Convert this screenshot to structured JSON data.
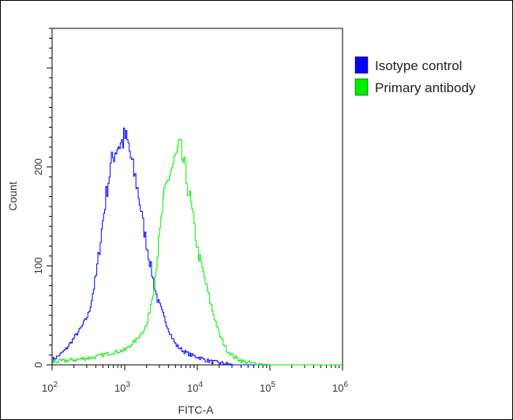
{
  "chart_data": {
    "type": "line",
    "xlabel": "FITC-A",
    "ylabel": "Count",
    "x_scale": "log",
    "xlim": [
      100,
      1000000
    ],
    "ylim": [
      0,
      340
    ],
    "x_ticks": [
      {
        "value": 100,
        "base": "10",
        "exp": "2"
      },
      {
        "value": 1000,
        "base": "10",
        "exp": "3"
      },
      {
        "value": 10000,
        "base": "10",
        "exp": "4"
      },
      {
        "value": 100000,
        "base": "10",
        "exp": "5"
      },
      {
        "value": 1000000,
        "base": "10",
        "exp": "6"
      }
    ],
    "y_ticks": [
      {
        "value": 0,
        "label": "0"
      },
      {
        "value": 100,
        "label": "100"
      },
      {
        "value": 200,
        "label": "200"
      }
    ],
    "legend_position": "top-right",
    "grid": false,
    "series": [
      {
        "name": "Isotype control",
        "color": "#0000ff",
        "x": [
          100,
          126,
          158,
          200,
          251,
          316,
          398,
          501,
          562,
          631,
          708,
          794,
          891,
          1000,
          1122,
          1259,
          1413,
          1585,
          1778,
          1995,
          2239,
          2512,
          2818,
          3162,
          3548,
          3981,
          4467,
          5012,
          6310,
          7943,
          10000,
          12589,
          15849,
          19953,
          25119,
          31623,
          50119,
          100000
        ],
        "y": [
          5,
          10,
          17,
          28,
          38,
          52,
          90,
          150,
          178,
          200,
          215,
          222,
          224,
          230,
          220,
          200,
          185,
          165,
          140,
          120,
          100,
          80,
          65,
          55,
          45,
          35,
          27,
          20,
          14,
          10,
          8,
          5,
          3,
          2,
          1,
          0,
          0,
          0
        ]
      },
      {
        "name": "Primary antibody",
        "color": "#00ee00",
        "x": [
          100,
          200,
          398,
          631,
          1000,
          1413,
          1995,
          2512,
          2818,
          3162,
          3548,
          3981,
          4467,
          5012,
          5623,
          6310,
          7079,
          7943,
          8913,
          10000,
          12589,
          15849,
          19953,
          25119,
          31623,
          39811,
          50119,
          63096,
          100000,
          1000000
        ],
        "y": [
          3,
          5,
          8,
          12,
          15,
          25,
          40,
          80,
          115,
          150,
          175,
          190,
          200,
          210,
          220,
          205,
          185,
          165,
          140,
          115,
          85,
          55,
          30,
          15,
          8,
          4,
          2,
          1,
          0,
          0
        ]
      }
    ]
  }
}
